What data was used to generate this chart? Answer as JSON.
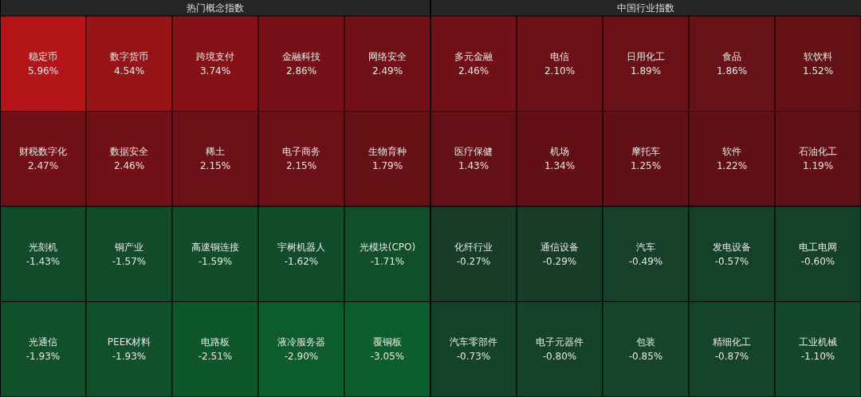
{
  "chart_data": [
    {
      "type": "other",
      "title": "热门概念指数",
      "categories": [
        "稳定币",
        "数字货币",
        "跨境支付",
        "金融科技",
        "网络安全",
        "财税数字化",
        "数据安全",
        "稀土",
        "电子商务",
        "生物育种",
        "光刻机",
        "铜产业",
        "高速铜连接",
        "宇树机器人",
        "光模块(CPO)",
        "光通信",
        "PEEK材料",
        "电路板",
        "液冷服务器",
        "覆铜板"
      ],
      "values": [
        5.96,
        4.54,
        3.74,
        2.86,
        2.49,
        2.47,
        2.46,
        2.15,
        2.15,
        1.79,
        -1.43,
        -1.57,
        -1.59,
        -1.62,
        -1.71,
        -1.93,
        -1.93,
        -2.51,
        -2.9,
        -3.05
      ],
      "value_labels": [
        "5.96%",
        "4.54%",
        "3.74%",
        "2.86%",
        "2.49%",
        "2.47%",
        "2.46%",
        "2.15%",
        "2.15%",
        "1.79%",
        "-1.43%",
        "-1.57%",
        "-1.59%",
        "-1.62%",
        "-1.71%",
        "-1.93%",
        "-1.93%",
        "-2.51%",
        "-2.90%",
        "-3.05%"
      ]
    },
    {
      "type": "other",
      "title": "中国行业指数",
      "categories": [
        "多元金融",
        "电信",
        "日用化工",
        "食品",
        "软饮料",
        "医疗保健",
        "机场",
        "摩托车",
        "软件",
        "石油化工",
        "化纤行业",
        "通信设备",
        "汽车",
        "发电设备",
        "电工电网",
        "汽车零部件",
        "电子元器件",
        "包装",
        "精细化工",
        "工业机械"
      ],
      "values": [
        2.46,
        2.1,
        1.89,
        1.86,
        1.52,
        1.43,
        1.34,
        1.25,
        1.22,
        1.19,
        -0.27,
        -0.29,
        -0.49,
        -0.57,
        -0.6,
        -0.73,
        -0.8,
        -0.85,
        -0.87,
        -1.1
      ],
      "value_labels": [
        "2.46%",
        "2.10%",
        "1.89%",
        "1.86%",
        "1.52%",
        "1.43%",
        "1.34%",
        "1.25%",
        "1.22%",
        "1.19%",
        "-0.27%",
        "-0.29%",
        "-0.49%",
        "-0.57%",
        "-0.60%",
        "-0.73%",
        "-0.80%",
        "-0.85%",
        "-0.87%",
        "-1.10%"
      ]
    }
  ]
}
